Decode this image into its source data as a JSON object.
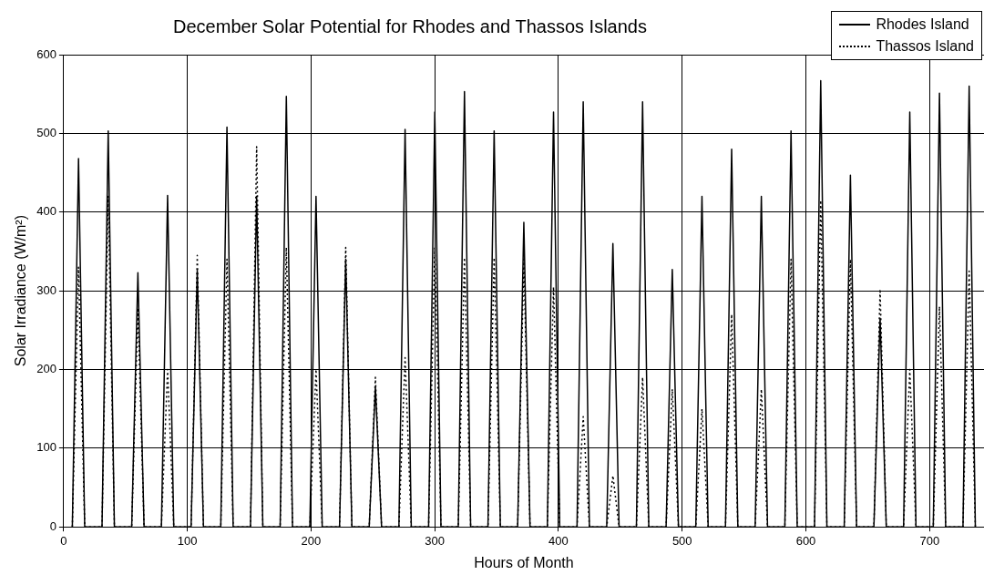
{
  "chart_data": {
    "type": "line",
    "title": "December Solar Potential for Rhodes and Thassos Islands",
    "xlabel": "Hours of Month",
    "ylabel": "Solar Irradiance (W/m²)",
    "x": [
      7,
      12,
      17,
      31,
      36,
      41,
      55,
      60,
      65,
      79,
      84,
      89,
      103,
      108,
      113,
      127,
      132,
      137,
      151,
      156,
      161,
      175,
      180,
      185,
      199,
      204,
      209,
      223,
      228,
      233,
      247,
      252,
      257,
      271,
      276,
      281,
      295,
      300,
      305,
      319,
      324,
      329,
      343,
      348,
      353,
      367,
      372,
      377,
      391,
      396,
      401,
      415,
      420,
      425,
      439,
      444,
      449,
      463,
      468,
      473,
      487,
      492,
      497,
      511,
      516,
      521,
      535,
      540,
      545,
      559,
      564,
      569,
      583,
      588,
      593,
      607,
      612,
      617,
      631,
      636,
      641,
      655,
      660,
      665,
      679,
      684,
      689,
      703,
      708,
      713,
      727,
      732,
      737
    ],
    "series": [
      {
        "name": "Rhodes Island",
        "color": "#000000",
        "line_style": "solid",
        "values": [
          0,
          468,
          0,
          0,
          503,
          0,
          0,
          323,
          0,
          0,
          421,
          0,
          0,
          326,
          0,
          0,
          508,
          0,
          0,
          420,
          0,
          0,
          547,
          0,
          0,
          420,
          0,
          0,
          340,
          0,
          0,
          178,
          0,
          0,
          505,
          0,
          0,
          527,
          0,
          0,
          553,
          0,
          0,
          503,
          0,
          0,
          387,
          0,
          0,
          527,
          0,
          0,
          540,
          0,
          0,
          360,
          0,
          0,
          540,
          0,
          0,
          327,
          0,
          0,
          420,
          0,
          0,
          480,
          0,
          0,
          420,
          0,
          0,
          503,
          0,
          0,
          567,
          0,
          0,
          447,
          0,
          0,
          265,
          0,
          0,
          527,
          0,
          0,
          551,
          0,
          0,
          560,
          0
        ]
      },
      {
        "name": "Thassos Island",
        "color": "#000000",
        "line_style": "dotted",
        "values": [
          0,
          330,
          0,
          0,
          420,
          0,
          0,
          278,
          0,
          0,
          200,
          0,
          0,
          345,
          0,
          0,
          340,
          0,
          0,
          483,
          0,
          0,
          355,
          0,
          0,
          200,
          0,
          0,
          355,
          0,
          0,
          190,
          0,
          0,
          215,
          0,
          0,
          355,
          0,
          0,
          342,
          0,
          0,
          342,
          0,
          0,
          340,
          0,
          0,
          305,
          0,
          0,
          140,
          0,
          0,
          65,
          0,
          0,
          190,
          0,
          0,
          175,
          0,
          0,
          150,
          0,
          0,
          270,
          0,
          0,
          175,
          0,
          0,
          340,
          0,
          0,
          415,
          0,
          0,
          340,
          0,
          0,
          302,
          0,
          0,
          200,
          0,
          0,
          280,
          0,
          0,
          325,
          0
        ]
      }
    ],
    "xlim": [
      0,
      744
    ],
    "ylim": [
      0,
      600
    ],
    "xticks": [
      0,
      100,
      200,
      300,
      400,
      500,
      600,
      700
    ],
    "yticks": [
      0,
      100,
      200,
      300,
      400,
      500,
      600
    ],
    "grid": true,
    "legend": "top right"
  }
}
